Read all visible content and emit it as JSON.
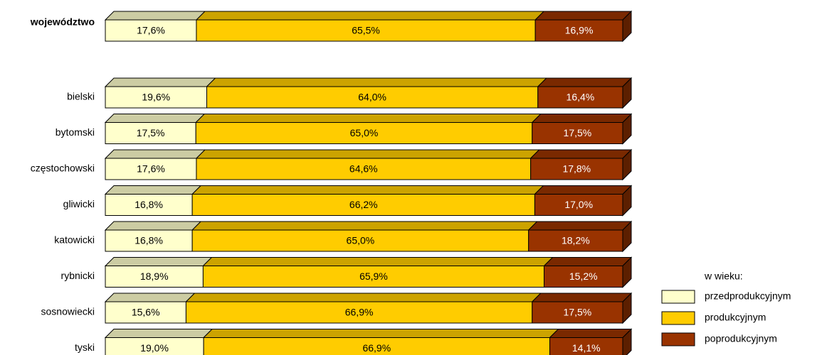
{
  "chart_data": {
    "type": "stacked-bar-horizontal",
    "categories": [
      "województwo",
      "bielski",
      "bytomski",
      "częstochowski",
      "gliwicki",
      "katowicki",
      "rybnicki",
      "sosnowiecki",
      "tyski"
    ],
    "series": [
      {
        "name": "przedprodukcyjnym",
        "color": "#ffffcc",
        "values": [
          17.6,
          19.6,
          17.5,
          17.6,
          16.8,
          16.8,
          18.9,
          15.6,
          19.0
        ],
        "value_labels": [
          "17,6%",
          "19,6%",
          "17,5%",
          "17,6%",
          "16,8%",
          "16,8%",
          "18,9%",
          "15,6%",
          "19,0%"
        ]
      },
      {
        "name": "produkcyjnym",
        "color": "#ffcc00",
        "values": [
          65.5,
          64.0,
          65.0,
          64.6,
          66.2,
          65.0,
          65.9,
          66.9,
          66.9
        ],
        "value_labels": [
          "65,5%",
          "64,0%",
          "65,0%",
          "64,6%",
          "66,2%",
          "65,0%",
          "65,9%",
          "66,9%",
          "66,9%"
        ]
      },
      {
        "name": "poprodukcyjnym",
        "color": "#993300",
        "values": [
          16.9,
          16.4,
          17.5,
          17.8,
          17.0,
          18.2,
          15.2,
          17.5,
          14.1
        ],
        "value_labels": [
          "16,9%",
          "16,4%",
          "17,5%",
          "17,8%",
          "17,0%",
          "18,2%",
          "15,2%",
          "17,5%",
          "14,1%"
        ]
      }
    ],
    "xlim": [
      0,
      100
    ],
    "legend_title": "w wieku:",
    "legend": "bottom-right"
  }
}
